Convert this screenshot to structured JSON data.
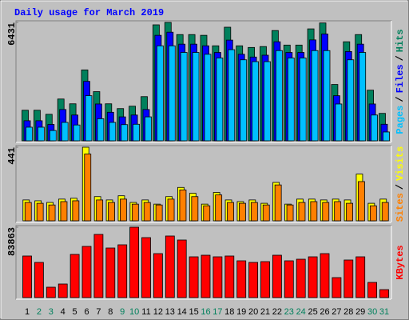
{
  "title": "Daily usage for March 2019",
  "legend_separator": "/",
  "chart_data": [
    {
      "type": "bar",
      "ylim": [
        0,
        6431
      ],
      "yticks": [
        6431
      ],
      "series": [
        {
          "name": "Hits",
          "color": "#00805c",
          "values": [
            1660,
            1660,
            1440,
            2270,
            2010,
            3850,
            2670,
            2010,
            1750,
            1880,
            2400,
            6300,
            6431,
            5770,
            5770,
            5730,
            5160,
            6170,
            5160,
            5070,
            5120,
            5990,
            5200,
            5200,
            6080,
            6400,
            3060,
            5380,
            5770,
            2750,
            1490
          ]
        },
        {
          "name": "Files",
          "color": "#0000ff",
          "values": [
            1090,
            1090,
            890,
            1700,
            1400,
            3230,
            2000,
            1550,
            1300,
            1400,
            1700,
            5730,
            5900,
            5250,
            5250,
            5160,
            4800,
            5470,
            4700,
            4550,
            4650,
            5380,
            4800,
            4800,
            5480,
            5800,
            2450,
            4850,
            5250,
            2000,
            900
          ]
        },
        {
          "name": "Pages",
          "color": "#00c0ff",
          "values": [
            740,
            740,
            560,
            1000,
            860,
            2450,
            1200,
            1000,
            880,
            900,
            1300,
            5160,
            5160,
            4800,
            4800,
            4700,
            4500,
            4950,
            4400,
            4300,
            4300,
            4900,
            4500,
            4500,
            4900,
            4900,
            2000,
            4400,
            4800,
            1400,
            480
          ]
        }
      ]
    },
    {
      "type": "bar",
      "ylim": [
        0,
        441
      ],
      "yticks": [
        441
      ],
      "series": [
        {
          "name": "Visits",
          "color": "#ffff00",
          "values": [
            125,
            120,
            110,
            130,
            135,
            441,
            145,
            125,
            150,
            110,
            125,
            100,
            145,
            200,
            165,
            100,
            170,
            125,
            115,
            125,
            105,
            230,
            100,
            130,
            130,
            125,
            130,
            125,
            280,
            105,
            130
          ]
        },
        {
          "name": "Sites",
          "color": "#ff8000",
          "values": [
            110,
            105,
            95,
            115,
            120,
            400,
            125,
            110,
            130,
            100,
            110,
            95,
            130,
            185,
            145,
            90,
            155,
            110,
            105,
            110,
            95,
            215,
            95,
            110,
            115,
            110,
            115,
            105,
            235,
            90,
            110
          ]
        }
      ]
    },
    {
      "type": "bar",
      "ylim": [
        0,
        83863
      ],
      "yticks": [
        83863
      ],
      "categories": [
        "1",
        "2",
        "3",
        "4",
        "5",
        "6",
        "7",
        "8",
        "9",
        "10",
        "11",
        "12",
        "13",
        "14",
        "15",
        "16",
        "17",
        "18",
        "19",
        "20",
        "21",
        "22",
        "23",
        "24",
        "25",
        "26",
        "27",
        "28",
        "29",
        "30",
        "31"
      ],
      "category_colors": [
        "#000000",
        "#00805c",
        "#00805c",
        "#000000",
        "#000000",
        "#000000",
        "#000000",
        "#000000",
        "#00805c",
        "#00805c",
        "#000000",
        "#000000",
        "#000000",
        "#000000",
        "#000000",
        "#00805c",
        "#00805c",
        "#000000",
        "#000000",
        "#000000",
        "#000000",
        "#000000",
        "#00805c",
        "#00805c",
        "#000000",
        "#000000",
        "#000000",
        "#000000",
        "#000000",
        "#00805c",
        "#00805c"
      ],
      "series": [
        {
          "name": "KBytes",
          "color": "#ff0000",
          "values": [
            49560,
            41930,
            12390,
            16200,
            51460,
            61000,
            75280,
            59080,
            62900,
            83863,
            71470,
            52410,
            73380,
            68610,
            48600,
            50500,
            48600,
            49550,
            43840,
            41930,
            42880,
            50500,
            43840,
            45740,
            48600,
            52410,
            23820,
            44790,
            48600,
            18100,
            9530
          ]
        }
      ]
    }
  ]
}
